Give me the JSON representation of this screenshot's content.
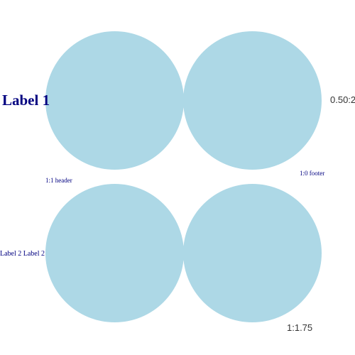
{
  "colors": {
    "background": "#ffffff",
    "circle_fill": "#add8e6",
    "label_navy": "#000080",
    "label_dark": "#333333"
  },
  "labels": {
    "label_1": "Label 1",
    "label_2": "Label 2 Label 2",
    "ratio_right": "0.50:2",
    "ratio_bottom": "1:1.75",
    "header_note": "1:1 header",
    "footer_note": "1:0 footer"
  }
}
